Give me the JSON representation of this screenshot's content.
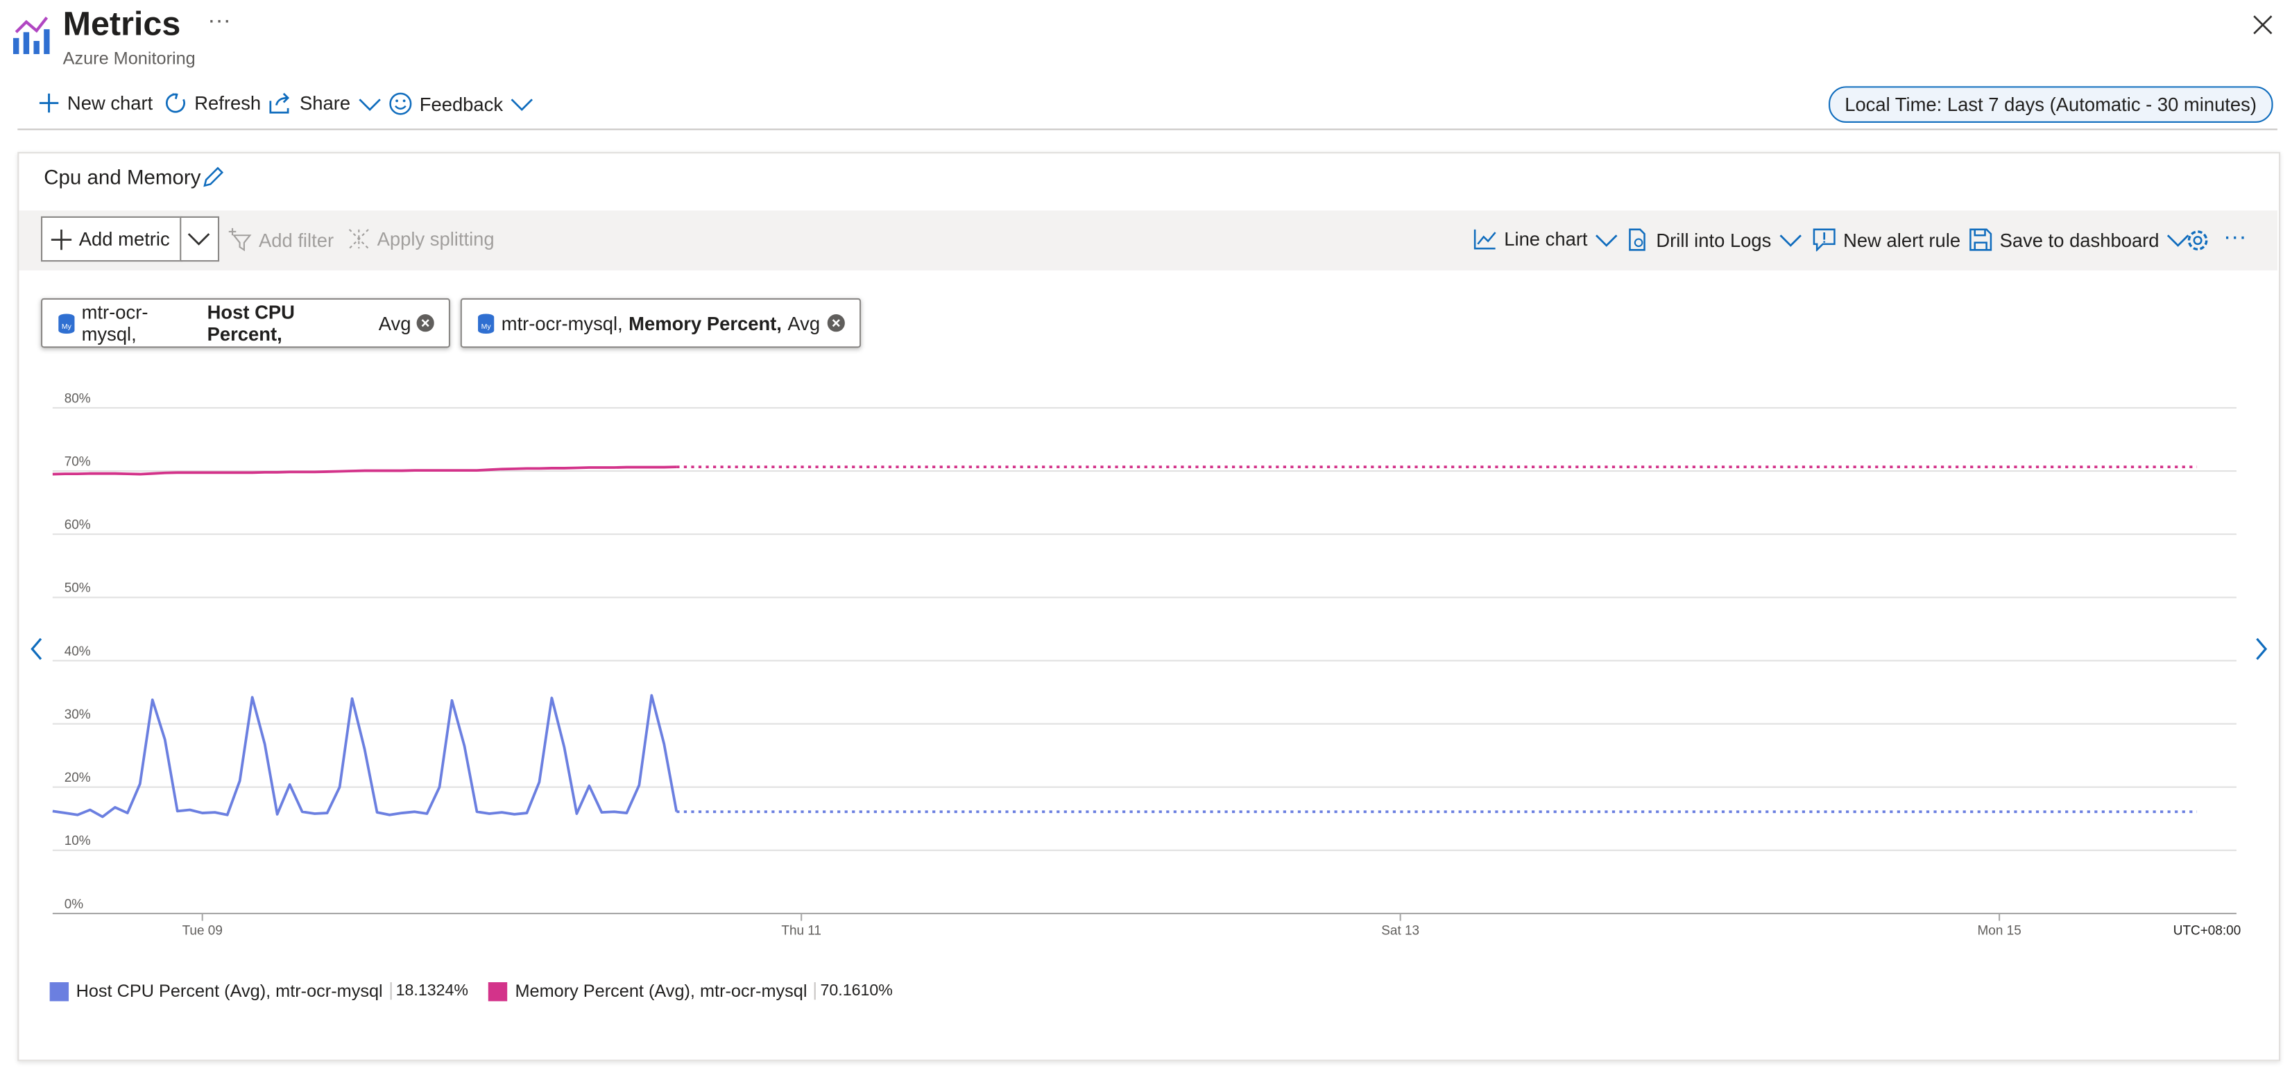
{
  "header": {
    "title": "Metrics",
    "subtitle": "Azure Monitoring"
  },
  "toolbar": [
    "New chart",
    "Refresh",
    "Share",
    "Feedback"
  ],
  "time_range": "Local Time: Last 7 days (Automatic - 30 minutes)",
  "chart_panel": {
    "title": "Cpu and Memory",
    "toolbar_left": [
      "Add metric",
      "Add filter",
      "Apply splitting"
    ],
    "toolbar_right": [
      "Line chart",
      "Drill into Logs",
      "New alert rule",
      "Save to dashboard"
    ],
    "pills": [
      {
        "resource": "mtr-ocr-mysql,",
        "metric": "Host CPU Percent,",
        "aggregation": "Avg"
      },
      {
        "resource": "mtr-ocr-mysql,",
        "metric": "Memory Percent,",
        "aggregation": "Avg"
      }
    ]
  },
  "chart_data": {
    "type": "line",
    "timezone": "UTC+08:00",
    "grid": true,
    "x": [
      0,
      1,
      2,
      3,
      4,
      5,
      6,
      7,
      8,
      9,
      10,
      11,
      12,
      13,
      14,
      15,
      16,
      17,
      18,
      19,
      20,
      21,
      22,
      23,
      24,
      25,
      26,
      27,
      28,
      29,
      30,
      31,
      32,
      33,
      34,
      35,
      36,
      37,
      38,
      39,
      40,
      41,
      42,
      43,
      44,
      45,
      46,
      47,
      48,
      49,
      50
    ],
    "xlim": [
      0,
      175
    ],
    "xticks": [
      {
        "value": 12,
        "label": "Tue 09"
      },
      {
        "value": 60,
        "label": "Thu 11"
      },
      {
        "value": 108,
        "label": "Sat 13"
      },
      {
        "value": 156,
        "label": "Mon 15"
      }
    ],
    "ylim": [
      0,
      80
    ],
    "yticks": [
      {
        "value": 0,
        "label": "0%"
      },
      {
        "value": 10,
        "label": "10%"
      },
      {
        "value": 20,
        "label": "20%"
      },
      {
        "value": 30,
        "label": "30%"
      },
      {
        "value": 40,
        "label": "40%"
      },
      {
        "value": 50,
        "label": "50%"
      },
      {
        "value": 60,
        "label": "60%"
      },
      {
        "value": 70,
        "label": "70%"
      },
      {
        "value": 80,
        "label": "80%"
      }
    ],
    "series": [
      {
        "name": "Host CPU Percent (Avg), mtr-ocr-mysql",
        "color": "#6b7fe0",
        "values": [
          16.2,
          15.9,
          15.6,
          16.4,
          15.3,
          16.8,
          15.9,
          20.5,
          33.8,
          27.5,
          16.2,
          16.4,
          15.9,
          16.0,
          15.6,
          21.0,
          34.2,
          26.8,
          15.7,
          20.4,
          16.1,
          15.8,
          15.9,
          20.0,
          34.0,
          26.0,
          16.0,
          15.6,
          15.9,
          16.1,
          15.8,
          20.0,
          33.7,
          26.5,
          16.1,
          15.8,
          16.0,
          15.7,
          15.9,
          20.8,
          34.1,
          26.3,
          15.8,
          20.2,
          16.0,
          16.1,
          15.9,
          20.3,
          34.5,
          26.8,
          16.1
        ],
        "summary": {
          "value": 18.1324,
          "label": "18.1324%"
        }
      },
      {
        "name": "Memory Percent (Avg), mtr-ocr-mysql",
        "color": "#d3338a",
        "values": [
          69.5,
          69.55,
          69.55,
          69.6,
          69.6,
          69.6,
          69.55,
          69.5,
          69.6,
          69.7,
          69.75,
          69.75,
          69.75,
          69.75,
          69.75,
          69.75,
          69.75,
          69.8,
          69.8,
          69.85,
          69.85,
          69.85,
          69.9,
          69.95,
          70.0,
          70.05,
          70.05,
          70.05,
          70.05,
          70.1,
          70.1,
          70.1,
          70.1,
          70.1,
          70.1,
          70.2,
          70.3,
          70.35,
          70.4,
          70.4,
          70.45,
          70.45,
          70.5,
          70.55,
          70.55,
          70.55,
          70.6,
          70.6,
          70.6,
          70.6,
          70.65
        ],
        "summary": {
          "value": 70.161,
          "label": "70.1610%"
        }
      }
    ]
  }
}
